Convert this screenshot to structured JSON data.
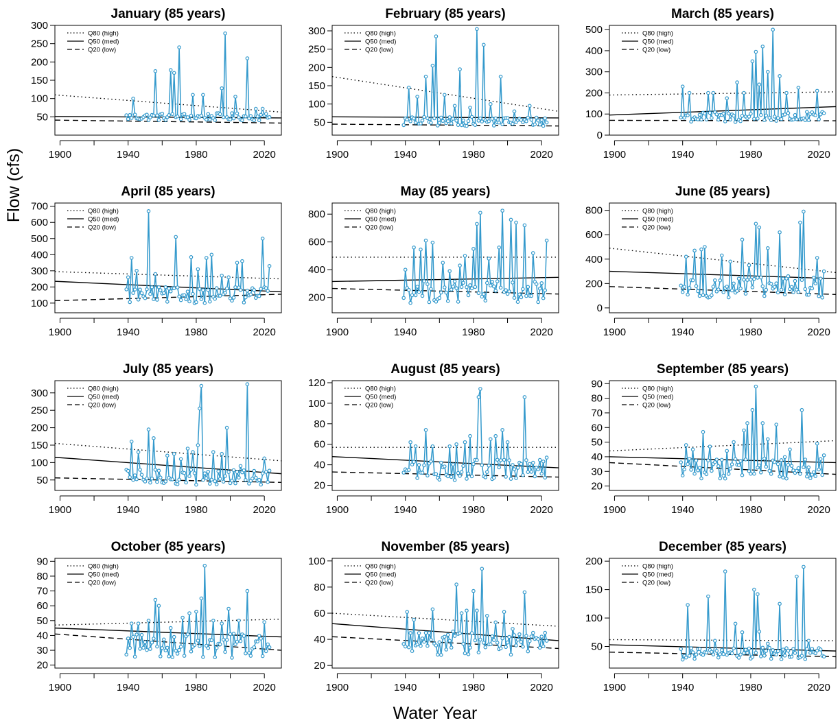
{
  "figure": {
    "xlabel": "Water Year",
    "ylabel": "Flow (cfs)",
    "colors": {
      "series": "#3399cc",
      "points": "#3399cc",
      "trend": "#000000"
    },
    "legend": {
      "position": "top-left",
      "entries": [
        "Q80 (high)",
        "Q50 (med)",
        "Q20 (low)"
      ]
    }
  },
  "chart_data": [
    {
      "type": "line",
      "title": "January (85 years)",
      "xlim": [
        1897,
        2030
      ],
      "ylim": [
        0,
        300
      ],
      "xticks": [
        1900,
        1940,
        1980,
        2020
      ],
      "yticks": [
        50,
        100,
        150,
        200,
        250,
        300
      ],
      "peaks": [
        [
          1943,
          100
        ],
        [
          1956,
          175
        ],
        [
          1965,
          178
        ],
        [
          1967,
          170
        ],
        [
          1970,
          240
        ],
        [
          1978,
          110
        ],
        [
          1984,
          110
        ],
        [
          1995,
          128
        ],
        [
          1997,
          278
        ],
        [
          2003,
          105
        ],
        [
          2010,
          210
        ],
        [
          2015,
          72
        ],
        [
          2019,
          72
        ]
      ],
      "base": [
        40,
        60
      ],
      "trends": {
        "q80": [
          110,
          63
        ],
        "q50": [
          51,
          47
        ],
        "q20": [
          41,
          33
        ]
      }
    },
    {
      "type": "line",
      "title": "February (85 years)",
      "xlim": [
        1897,
        2030
      ],
      "ylim": [
        15,
        315
      ],
      "xticks": [
        1900,
        1940,
        1980,
        2020
      ],
      "yticks": [
        50,
        100,
        150,
        200,
        250,
        300
      ],
      "peaks": [
        [
          1942,
          145
        ],
        [
          1947,
          120
        ],
        [
          1952,
          175
        ],
        [
          1956,
          205
        ],
        [
          1958,
          285
        ],
        [
          1963,
          125
        ],
        [
          1969,
          95
        ],
        [
          1972,
          195
        ],
        [
          1978,
          90
        ],
        [
          1982,
          305
        ],
        [
          1986,
          262
        ],
        [
          1990,
          100
        ],
        [
          1996,
          175
        ],
        [
          2004,
          80
        ],
        [
          2013,
          95
        ],
        [
          2018,
          55
        ]
      ],
      "base": [
        40,
        65
      ],
      "trends": {
        "q80": [
          175,
          80
        ],
        "q50": [
          65,
          62
        ],
        "q20": [
          45,
          40
        ]
      }
    },
    {
      "type": "line",
      "title": "March (85 years)",
      "xlim": [
        1897,
        2030
      ],
      "ylim": [
        0,
        520
      ],
      "xticks": [
        1900,
        1940,
        1980,
        2020
      ],
      "yticks": [
        0,
        100,
        200,
        300,
        400,
        500
      ],
      "peaks": [
        [
          1940,
          230
        ],
        [
          1944,
          200
        ],
        [
          1955,
          200
        ],
        [
          1958,
          200
        ],
        [
          1966,
          175
        ],
        [
          1972,
          250
        ],
        [
          1976,
          200
        ],
        [
          1981,
          350
        ],
        [
          1983,
          395
        ],
        [
          1985,
          240
        ],
        [
          1987,
          420
        ],
        [
          1990,
          300
        ],
        [
          1993,
          500
        ],
        [
          1997,
          280
        ],
        [
          2001,
          200
        ],
        [
          2008,
          225
        ],
        [
          2019,
          210
        ]
      ],
      "base": [
        60,
        110
      ],
      "trends": {
        "q80": [
          190,
          205
        ],
        "q50": [
          95,
          135
        ],
        "q20": [
          70,
          68
        ]
      }
    },
    {
      "type": "line",
      "title": "April (85 years)",
      "xlim": [
        1897,
        2030
      ],
      "ylim": [
        40,
        720
      ],
      "xticks": [
        1900,
        1940,
        1980,
        2020
      ],
      "yticks": [
        100,
        200,
        300,
        400,
        500,
        600,
        700
      ],
      "peaks": [
        [
          1940,
          260
        ],
        [
          1942,
          380
        ],
        [
          1945,
          300
        ],
        [
          1952,
          670
        ],
        [
          1956,
          280
        ],
        [
          1968,
          510
        ],
        [
          1977,
          385
        ],
        [
          1981,
          310
        ],
        [
          1986,
          380
        ],
        [
          1989,
          400
        ],
        [
          1995,
          270
        ],
        [
          1999,
          260
        ],
        [
          2004,
          350
        ],
        [
          2007,
          360
        ],
        [
          2019,
          500
        ],
        [
          2023,
          330
        ]
      ],
      "base": [
        100,
        200
      ],
      "trends": {
        "q80": [
          295,
          250
        ],
        "q50": [
          235,
          170
        ],
        "q20": [
          115,
          155
        ]
      }
    },
    {
      "type": "line",
      "title": "May (85 years)",
      "xlim": [
        1897,
        2030
      ],
      "ylim": [
        90,
        880
      ],
      "xticks": [
        1900,
        1940,
        1980,
        2020
      ],
      "yticks": [
        200,
        400,
        600,
        800
      ],
      "peaks": [
        [
          1940,
          400
        ],
        [
          1945,
          560
        ],
        [
          1949,
          545
        ],
        [
          1952,
          610
        ],
        [
          1956,
          595
        ],
        [
          1962,
          450
        ],
        [
          1966,
          390
        ],
        [
          1972,
          430
        ],
        [
          1975,
          500
        ],
        [
          1980,
          550
        ],
        [
          1982,
          730
        ],
        [
          1984,
          810
        ],
        [
          1989,
          480
        ],
        [
          1995,
          560
        ],
        [
          1997,
          825
        ],
        [
          2002,
          760
        ],
        [
          2005,
          740
        ],
        [
          2010,
          720
        ],
        [
          2015,
          520
        ],
        [
          2023,
          610
        ]
      ],
      "base": [
        160,
        320
      ],
      "trends": {
        "q80": [
          490,
          490
        ],
        "q50": [
          315,
          345
        ],
        "q20": [
          265,
          225
        ]
      }
    },
    {
      "type": "line",
      "title": "June (85 years)",
      "xlim": [
        1897,
        2030
      ],
      "ylim": [
        -40,
        860
      ],
      "xticks": [
        1900,
        1940,
        1980,
        2020
      ],
      "yticks": [
        0,
        200,
        400,
        600,
        800
      ],
      "peaks": [
        [
          1942,
          420
        ],
        [
          1947,
          470
        ],
        [
          1951,
          480
        ],
        [
          1953,
          500
        ],
        [
          1963,
          430
        ],
        [
          1968,
          380
        ],
        [
          1975,
          560
        ],
        [
          1979,
          350
        ],
        [
          1983,
          690
        ],
        [
          1985,
          660
        ],
        [
          1990,
          490
        ],
        [
          1997,
          620
        ],
        [
          2002,
          260
        ],
        [
          2009,
          700
        ],
        [
          2011,
          790
        ],
        [
          2019,
          410
        ],
        [
          2023,
          300
        ]
      ],
      "base": [
        80,
        250
      ],
      "trends": {
        "q80": [
          490,
          290
        ],
        "q50": [
          300,
          240
        ],
        "q20": [
          175,
          110
        ]
      }
    },
    {
      "type": "line",
      "title": "July (85 years)",
      "xlim": [
        1897,
        2030
      ],
      "ylim": [
        20,
        335
      ],
      "xticks": [
        1900,
        1940,
        1980,
        2020
      ],
      "yticks": [
        50,
        100,
        150,
        200,
        250,
        300
      ],
      "peaks": [
        [
          1942,
          160
        ],
        [
          1946,
          130
        ],
        [
          1952,
          195
        ],
        [
          1955,
          170
        ],
        [
          1963,
          120
        ],
        [
          1967,
          125
        ],
        [
          1971,
          110
        ],
        [
          1975,
          140
        ],
        [
          1978,
          130
        ],
        [
          1981,
          150
        ],
        [
          1982,
          255
        ],
        [
          1983,
          320
        ],
        [
          1990,
          130
        ],
        [
          1995,
          125
        ],
        [
          1998,
          200
        ],
        [
          2006,
          90
        ],
        [
          2010,
          325
        ],
        [
          2020,
          112
        ]
      ],
      "base": [
        35,
        80
      ],
      "trends": {
        "q80": [
          155,
          105
        ],
        "q50": [
          115,
          68
        ],
        "q20": [
          56,
          43
        ]
      }
    },
    {
      "type": "line",
      "title": "August (85 years)",
      "xlim": [
        1897,
        2030
      ],
      "ylim": [
        15,
        122
      ],
      "xticks": [
        1900,
        1940,
        1980,
        2020
      ],
      "yticks": [
        20,
        40,
        60,
        80,
        100,
        120
      ],
      "peaks": [
        [
          1943,
          62
        ],
        [
          1946,
          58
        ],
        [
          1952,
          74
        ],
        [
          1956,
          58
        ],
        [
          1966,
          58
        ],
        [
          1970,
          60
        ],
        [
          1975,
          62
        ],
        [
          1978,
          68
        ],
        [
          1983,
          106
        ],
        [
          1984,
          114
        ],
        [
          1990,
          65
        ],
        [
          1993,
          68
        ],
        [
          1997,
          74
        ],
        [
          2000,
          62
        ],
        [
          2010,
          106
        ],
        [
          2015,
          42
        ],
        [
          2023,
          47
        ]
      ],
      "base": [
        25,
        45
      ],
      "trends": {
        "q80": [
          57,
          57
        ],
        "q50": [
          48,
          37
        ],
        "q20": [
          33,
          28
        ]
      }
    },
    {
      "type": "line",
      "title": "September (85 years)",
      "xlim": [
        1897,
        2030
      ],
      "ylim": [
        17,
        92
      ],
      "xticks": [
        1900,
        1940,
        1980,
        2020
      ],
      "yticks": [
        20,
        30,
        40,
        50,
        60,
        70,
        80,
        90
      ],
      "peaks": [
        [
          1942,
          48
        ],
        [
          1946,
          45
        ],
        [
          1952,
          57
        ],
        [
          1956,
          47
        ],
        [
          1966,
          44
        ],
        [
          1970,
          50
        ],
        [
          1976,
          58
        ],
        [
          1978,
          63
        ],
        [
          1981,
          72
        ],
        [
          1983,
          88
        ],
        [
          1987,
          63
        ],
        [
          1990,
          52
        ],
        [
          1995,
          62
        ],
        [
          2003,
          45
        ],
        [
          2010,
          72
        ],
        [
          2019,
          49
        ],
        [
          2023,
          41
        ]
      ],
      "base": [
        25,
        40
      ],
      "trends": {
        "q80": [
          44,
          51
        ],
        "q50": [
          40,
          36
        ],
        "q20": [
          36,
          28
        ]
      }
    },
    {
      "type": "line",
      "title": "October (85 years)",
      "xlim": [
        1897,
        2030
      ],
      "ylim": [
        18,
        92
      ],
      "xticks": [
        1900,
        1940,
        1980,
        2020
      ],
      "yticks": [
        20,
        30,
        40,
        50,
        60,
        70,
        80,
        90
      ],
      "peaks": [
        [
          1942,
          48
        ],
        [
          1946,
          48
        ],
        [
          1952,
          50
        ],
        [
          1956,
          64
        ],
        [
          1958,
          60
        ],
        [
          1965,
          45
        ],
        [
          1972,
          52
        ],
        [
          1976,
          55
        ],
        [
          1980,
          56
        ],
        [
          1983,
          65
        ],
        [
          1985,
          87
        ],
        [
          1990,
          50
        ],
        [
          1995,
          48
        ],
        [
          1999,
          58
        ],
        [
          2005,
          50
        ],
        [
          2010,
          70
        ],
        [
          2015,
          36
        ],
        [
          2020,
          49
        ],
        [
          2023,
          32
        ]
      ],
      "base": [
        25,
        42
      ],
      "trends": {
        "q80": [
          47,
          51
        ],
        "q50": [
          45,
          39
        ],
        "q20": [
          41,
          30
        ]
      }
    },
    {
      "type": "line",
      "title": "November (85 years)",
      "xlim": [
        1897,
        2030
      ],
      "ylim": [
        18,
        102
      ],
      "xticks": [
        1900,
        1940,
        1980,
        2020
      ],
      "yticks": [
        20,
        40,
        60,
        80,
        100
      ],
      "peaks": [
        [
          1941,
          61
        ],
        [
          1945,
          55
        ],
        [
          1952,
          45
        ],
        [
          1956,
          63
        ],
        [
          1963,
          42
        ],
        [
          1968,
          46
        ],
        [
          1970,
          82
        ],
        [
          1973,
          60
        ],
        [
          1976,
          62
        ],
        [
          1980,
          77
        ],
        [
          1982,
          62
        ],
        [
          1985,
          94
        ],
        [
          1988,
          58
        ],
        [
          1993,
          53
        ],
        [
          1998,
          61
        ],
        [
          2003,
          48
        ],
        [
          2010,
          76
        ],
        [
          2015,
          45
        ],
        [
          2022,
          45
        ]
      ],
      "base": [
        28,
        45
      ],
      "trends": {
        "q80": [
          60,
          50
        ],
        "q50": [
          52,
          39
        ],
        "q20": [
          42,
          33
        ]
      }
    },
    {
      "type": "line",
      "title": "December (85 years)",
      "xlim": [
        1897,
        2030
      ],
      "ylim": [
        12,
        205
      ],
      "xticks": [
        1900,
        1940,
        1980,
        2020
      ],
      "yticks": [
        50,
        100,
        150,
        200
      ],
      "peaks": [
        [
          1943,
          123
        ],
        [
          1955,
          138
        ],
        [
          1959,
          60
        ],
        [
          1965,
          182
        ],
        [
          1971,
          90
        ],
        [
          1975,
          75
        ],
        [
          1982,
          150
        ],
        [
          1984,
          142
        ],
        [
          1985,
          76
        ],
        [
          1990,
          55
        ],
        [
          1997,
          125
        ],
        [
          2001,
          47
        ],
        [
          2007,
          173
        ],
        [
          2011,
          190
        ],
        [
          2014,
          60
        ],
        [
          2020,
          47
        ]
      ],
      "base": [
        27,
        48
      ],
      "trends": {
        "q80": [
          62,
          60
        ],
        "q50": [
          53,
          42
        ],
        "q20": [
          40,
          32
        ]
      }
    }
  ]
}
